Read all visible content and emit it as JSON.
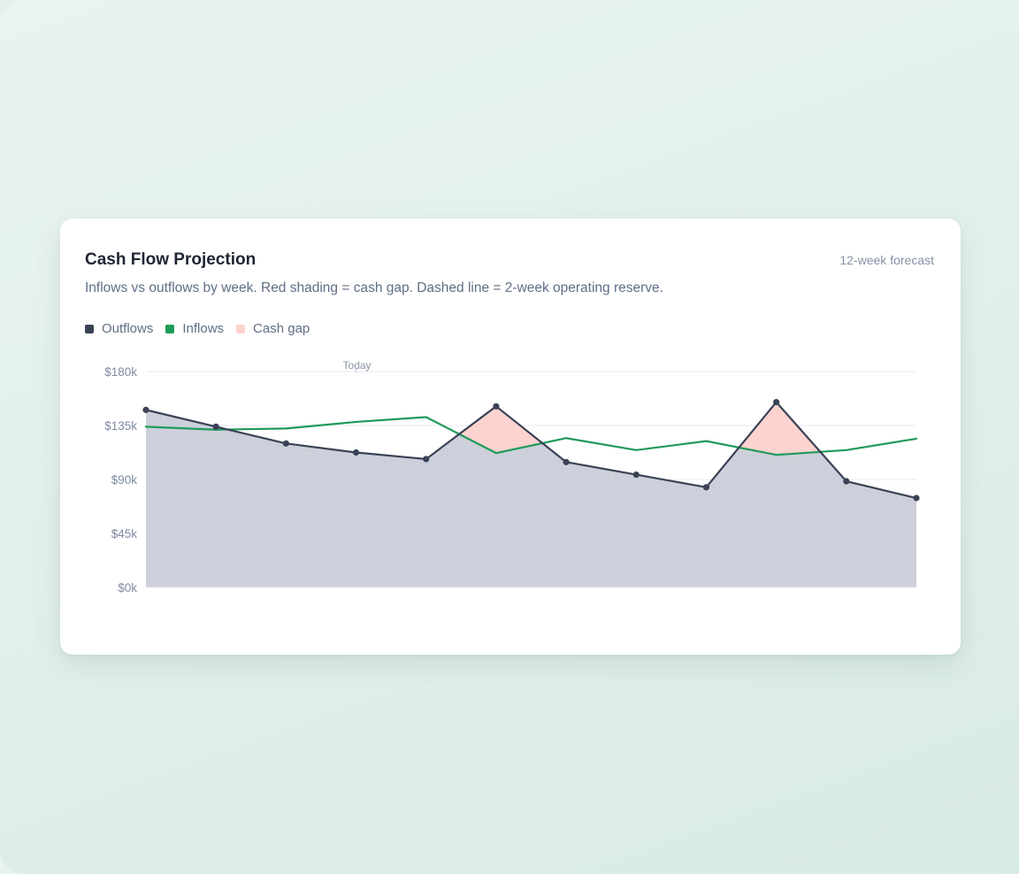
{
  "card": {
    "title": "Cash Flow Projection",
    "badge": "12-week forecast",
    "subtitle": "Inflows vs outflows by week. Red shading = cash gap. Dashed line = 2-week operating reserve."
  },
  "legend": [
    {
      "label": "Outflows",
      "color": "#3a4256"
    },
    {
      "label": "Inflows",
      "color": "#1f9a5a"
    },
    {
      "label": "Cash gap",
      "color": "#fdd3cf"
    }
  ],
  "colors": {
    "outflow_line": "#3a4256",
    "outflow_fill": "#cdd0da",
    "inflow_line": "#1f9a5a",
    "gap_fill": "#fdd3cf",
    "grid": "#e6e9f0"
  },
  "chart_data": {
    "type": "line",
    "x": [
      1,
      2,
      3,
      4,
      5,
      6,
      7,
      8,
      9,
      10,
      11,
      12
    ],
    "series": [
      {
        "name": "Outflows",
        "values": [
          148000,
          134000,
          120000,
          112500,
          107000,
          151000,
          104500,
          94000,
          83500,
          154500,
          88500,
          74500
        ]
      },
      {
        "name": "Inflows",
        "values": [
          134000,
          131500,
          132500,
          138000,
          142000,
          112000,
          124500,
          114500,
          122000,
          110500,
          114500,
          124000
        ]
      }
    ],
    "y_ticks": [
      "$180k",
      "$135k",
      "$90k",
      "$45k",
      "$0k"
    ],
    "ylim": [
      0,
      180000
    ],
    "today_label": "Today",
    "today_week": 4,
    "grid": true,
    "legend_position": "top-left"
  }
}
